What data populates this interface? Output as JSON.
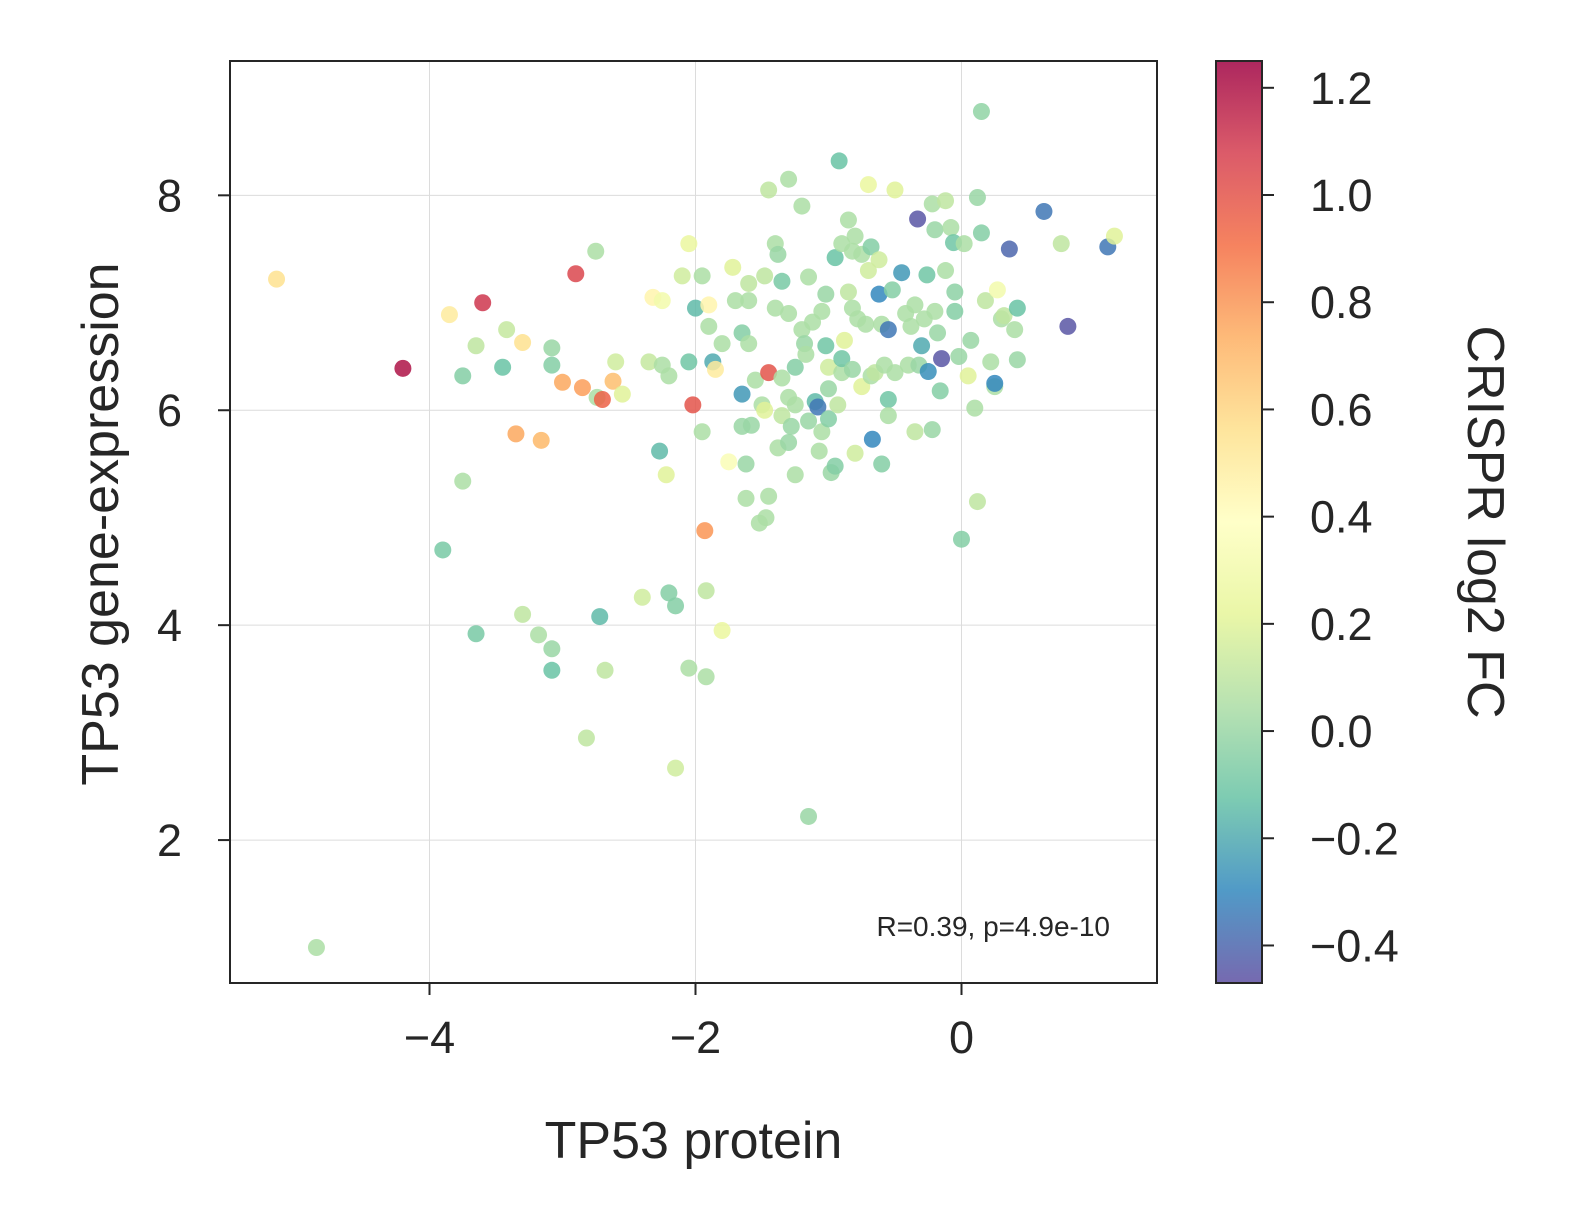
{
  "chart_data": {
    "type": "scatter",
    "xlabel": "TP53 protein",
    "ylabel": "TP53 gene-expression",
    "xlim": [
      -5.5,
      1.47
    ],
    "ylim": [
      0.67,
      9.25
    ],
    "xticks": [
      -4,
      -2,
      0
    ],
    "xtick_labels": [
      "−4",
      "−2",
      "0"
    ],
    "yticks": [
      2,
      4,
      6,
      8
    ],
    "ytick_labels": [
      "2",
      "4",
      "6",
      "8"
    ],
    "grid": true,
    "colormap": "Spectral_r",
    "colorbar": {
      "label": "CRISPR log2 FC",
      "min": -0.47,
      "max": 1.25,
      "ticks": [
        -0.4,
        -0.2,
        0.0,
        0.2,
        0.4,
        0.6,
        0.8,
        1.0,
        1.2
      ],
      "tick_labels": [
        "−0.4",
        "−0.2",
        "0.0",
        "0.2",
        "0.4",
        "0.6",
        "0.8",
        "1.0",
        "1.2"
      ],
      "stops": [
        "#5e4fa2",
        "#3288bd",
        "#66c2a5",
        "#abdda4",
        "#e6f598",
        "#ffffbf",
        "#fee08b",
        "#fdae61",
        "#f46d43",
        "#d53e4f",
        "#9e0142"
      ]
    },
    "annotation": "R=0.39, p=4.9e-10",
    "points": [
      {
        "x": -5.15,
        "y": 7.22,
        "c": 0.55
      },
      {
        "x": -4.85,
        "y": 1.0,
        "c": 0.05
      },
      {
        "x": -4.2,
        "y": 6.39,
        "c": 1.2
      },
      {
        "x": -3.9,
        "y": 4.7,
        "c": -0.08
      },
      {
        "x": -3.85,
        "y": 6.89,
        "c": 0.5
      },
      {
        "x": -3.75,
        "y": 6.32,
        "c": -0.05
      },
      {
        "x": -3.75,
        "y": 5.34,
        "c": 0.05
      },
      {
        "x": -3.65,
        "y": 6.6,
        "c": 0.1
      },
      {
        "x": -3.65,
        "y": 3.92,
        "c": -0.08
      },
      {
        "x": -3.6,
        "y": 7.0,
        "c": 1.1
      },
      {
        "x": -3.45,
        "y": 6.4,
        "c": -0.12
      },
      {
        "x": -3.42,
        "y": 6.75,
        "c": 0.12
      },
      {
        "x": -3.35,
        "y": 5.78,
        "c": 0.75
      },
      {
        "x": -3.3,
        "y": 6.63,
        "c": 0.55
      },
      {
        "x": -3.3,
        "y": 4.1,
        "c": 0.1
      },
      {
        "x": -3.18,
        "y": 3.91,
        "c": 0.05
      },
      {
        "x": -3.16,
        "y": 5.72,
        "c": 0.7
      },
      {
        "x": -3.08,
        "y": 6.58,
        "c": 0.0
      },
      {
        "x": -3.08,
        "y": 6.42,
        "c": -0.05
      },
      {
        "x": -3.08,
        "y": 3.78,
        "c": 0.0
      },
      {
        "x": -3.08,
        "y": 3.58,
        "c": -0.12
      },
      {
        "x": -3.0,
        "y": 6.26,
        "c": 0.75
      },
      {
        "x": -2.9,
        "y": 7.27,
        "c": 1.05
      },
      {
        "x": -2.85,
        "y": 6.21,
        "c": 0.78
      },
      {
        "x": -2.82,
        "y": 2.95,
        "c": 0.1
      },
      {
        "x": -2.75,
        "y": 7.48,
        "c": 0.05
      },
      {
        "x": -2.74,
        "y": 6.12,
        "c": 0.05
      },
      {
        "x": -2.72,
        "y": 4.08,
        "c": -0.15
      },
      {
        "x": -2.7,
        "y": 6.1,
        "c": 0.95
      },
      {
        "x": -2.68,
        "y": 3.58,
        "c": 0.1
      },
      {
        "x": -2.62,
        "y": 6.27,
        "c": 0.68
      },
      {
        "x": -2.6,
        "y": 6.45,
        "c": 0.15
      },
      {
        "x": -2.55,
        "y": 6.15,
        "c": 0.2
      },
      {
        "x": -2.4,
        "y": 4.26,
        "c": 0.15
      },
      {
        "x": -2.35,
        "y": 6.45,
        "c": 0.12
      },
      {
        "x": -2.32,
        "y": 7.05,
        "c": 0.45
      },
      {
        "x": -2.27,
        "y": 5.62,
        "c": -0.15
      },
      {
        "x": -2.25,
        "y": 6.42,
        "c": 0.05
      },
      {
        "x": -2.25,
        "y": 7.02,
        "c": 0.3
      },
      {
        "x": -2.22,
        "y": 5.4,
        "c": 0.2
      },
      {
        "x": -2.2,
        "y": 6.32,
        "c": 0.05
      },
      {
        "x": -2.2,
        "y": 4.3,
        "c": -0.05
      },
      {
        "x": -2.15,
        "y": 4.18,
        "c": -0.05
      },
      {
        "x": -2.15,
        "y": 2.67,
        "c": 0.15
      },
      {
        "x": -2.1,
        "y": 7.25,
        "c": 0.15
      },
      {
        "x": -2.05,
        "y": 3.6,
        "c": 0.05
      },
      {
        "x": -2.05,
        "y": 7.55,
        "c": 0.25
      },
      {
        "x": -2.05,
        "y": 6.45,
        "c": -0.1
      },
      {
        "x": -2.0,
        "y": 6.95,
        "c": -0.15
      },
      {
        "x": -2.02,
        "y": 6.05,
        "c": 1.0
      },
      {
        "x": -1.95,
        "y": 7.25,
        "c": 0.05
      },
      {
        "x": -1.95,
        "y": 5.8,
        "c": 0.05
      },
      {
        "x": -1.93,
        "y": 4.88,
        "c": 0.8
      },
      {
        "x": -1.92,
        "y": 4.32,
        "c": 0.1
      },
      {
        "x": -1.92,
        "y": 3.52,
        "c": 0.05
      },
      {
        "x": -1.9,
        "y": 6.98,
        "c": 0.45
      },
      {
        "x": -1.9,
        "y": 6.78,
        "c": 0.05
      },
      {
        "x": -1.87,
        "y": 6.45,
        "c": -0.2
      },
      {
        "x": -1.85,
        "y": 6.38,
        "c": 0.5
      },
      {
        "x": -1.8,
        "y": 3.95,
        "c": 0.25
      },
      {
        "x": -1.8,
        "y": 6.62,
        "c": 0.05
      },
      {
        "x": -1.75,
        "y": 5.52,
        "c": 0.35
      },
      {
        "x": -1.72,
        "y": 7.33,
        "c": 0.2
      },
      {
        "x": -1.7,
        "y": 7.02,
        "c": 0.05
      },
      {
        "x": -1.65,
        "y": 5.85,
        "c": 0.0
      },
      {
        "x": -1.65,
        "y": 6.15,
        "c": -0.25
      },
      {
        "x": -1.65,
        "y": 6.72,
        "c": -0.05
      },
      {
        "x": -1.62,
        "y": 5.5,
        "c": 0.0
      },
      {
        "x": -1.62,
        "y": 5.18,
        "c": 0.05
      },
      {
        "x": -1.6,
        "y": 7.18,
        "c": 0.1
      },
      {
        "x": -1.6,
        "y": 7.02,
        "c": 0.05
      },
      {
        "x": -1.6,
        "y": 6.62,
        "c": 0.05
      },
      {
        "x": -1.58,
        "y": 5.86,
        "c": 0.0
      },
      {
        "x": -1.55,
        "y": 6.28,
        "c": 0.05
      },
      {
        "x": -1.52,
        "y": 4.95,
        "c": 0.05
      },
      {
        "x": -1.5,
        "y": 6.05,
        "c": 0.05
      },
      {
        "x": -1.48,
        "y": 7.25,
        "c": 0.1
      },
      {
        "x": -1.48,
        "y": 6.0,
        "c": 0.2
      },
      {
        "x": -1.47,
        "y": 5.0,
        "c": 0.05
      },
      {
        "x": -1.45,
        "y": 6.35,
        "c": 1.0
      },
      {
        "x": -1.45,
        "y": 5.2,
        "c": 0.05
      },
      {
        "x": -1.45,
        "y": 8.05,
        "c": 0.1
      },
      {
        "x": -1.4,
        "y": 6.95,
        "c": 0.05
      },
      {
        "x": -1.4,
        "y": 7.55,
        "c": 0.05
      },
      {
        "x": -1.38,
        "y": 7.45,
        "c": 0.0
      },
      {
        "x": -1.38,
        "y": 5.65,
        "c": 0.05
      },
      {
        "x": -1.35,
        "y": 7.2,
        "c": -0.08
      },
      {
        "x": -1.35,
        "y": 5.95,
        "c": 0.1
      },
      {
        "x": -1.35,
        "y": 6.3,
        "c": 0.05
      },
      {
        "x": -1.3,
        "y": 8.15,
        "c": 0.05
      },
      {
        "x": -1.3,
        "y": 6.9,
        "c": 0.05
      },
      {
        "x": -1.3,
        "y": 5.7,
        "c": 0.0
      },
      {
        "x": -1.3,
        "y": 6.12,
        "c": 0.05
      },
      {
        "x": -1.28,
        "y": 5.85,
        "c": 0.0
      },
      {
        "x": -1.25,
        "y": 6.4,
        "c": -0.05
      },
      {
        "x": -1.25,
        "y": 6.05,
        "c": 0.05
      },
      {
        "x": -1.25,
        "y": 5.4,
        "c": 0.05
      },
      {
        "x": -1.2,
        "y": 7.9,
        "c": 0.05
      },
      {
        "x": -1.2,
        "y": 6.75,
        "c": 0.05
      },
      {
        "x": -1.18,
        "y": 6.62,
        "c": 0.0
      },
      {
        "x": -1.17,
        "y": 6.52,
        "c": 0.05
      },
      {
        "x": -1.15,
        "y": 7.24,
        "c": 0.05
      },
      {
        "x": -1.15,
        "y": 5.9,
        "c": 0.0
      },
      {
        "x": -1.15,
        "y": 2.22,
        "c": 0.0
      },
      {
        "x": -1.12,
        "y": 6.82,
        "c": 0.05
      },
      {
        "x": -1.1,
        "y": 6.08,
        "c": -0.15
      },
      {
        "x": -1.08,
        "y": 6.03,
        "c": -0.35
      },
      {
        "x": -1.07,
        "y": 5.62,
        "c": 0.05
      },
      {
        "x": -1.05,
        "y": 6.92,
        "c": 0.05
      },
      {
        "x": -1.05,
        "y": 5.8,
        "c": 0.05
      },
      {
        "x": -1.02,
        "y": 6.6,
        "c": -0.1
      },
      {
        "x": -1.02,
        "y": 7.08,
        "c": 0.0
      },
      {
        "x": -1.0,
        "y": 6.4,
        "c": 0.15
      },
      {
        "x": -1.0,
        "y": 6.2,
        "c": 0.0
      },
      {
        "x": -1.0,
        "y": 5.92,
        "c": -0.05
      },
      {
        "x": -0.98,
        "y": 5.42,
        "c": 0.0
      },
      {
        "x": -0.95,
        "y": 7.42,
        "c": -0.12
      },
      {
        "x": -0.95,
        "y": 5.48,
        "c": -0.05
      },
      {
        "x": -0.93,
        "y": 6.05,
        "c": 0.1
      },
      {
        "x": -0.92,
        "y": 8.32,
        "c": -0.12
      },
      {
        "x": -0.9,
        "y": 7.55,
        "c": 0.05
      },
      {
        "x": -0.9,
        "y": 6.35,
        "c": 0.05
      },
      {
        "x": -0.9,
        "y": 6.48,
        "c": -0.1
      },
      {
        "x": -0.88,
        "y": 6.65,
        "c": 0.2
      },
      {
        "x": -0.85,
        "y": 7.1,
        "c": 0.1
      },
      {
        "x": -0.85,
        "y": 7.77,
        "c": 0.05
      },
      {
        "x": -0.82,
        "y": 7.48,
        "c": 0.05
      },
      {
        "x": -0.82,
        "y": 6.95,
        "c": 0.05
      },
      {
        "x": -0.82,
        "y": 6.38,
        "c": 0.0
      },
      {
        "x": -0.8,
        "y": 7.62,
        "c": 0.05
      },
      {
        "x": -0.8,
        "y": 5.6,
        "c": 0.15
      },
      {
        "x": -0.78,
        "y": 6.85,
        "c": 0.05
      },
      {
        "x": -0.75,
        "y": 7.45,
        "c": 0.05
      },
      {
        "x": -0.75,
        "y": 6.22,
        "c": 0.2
      },
      {
        "x": -0.72,
        "y": 6.8,
        "c": 0.05
      },
      {
        "x": -0.7,
        "y": 8.1,
        "c": 0.25
      },
      {
        "x": -0.7,
        "y": 7.3,
        "c": 0.15
      },
      {
        "x": -0.68,
        "y": 7.52,
        "c": -0.05
      },
      {
        "x": -0.68,
        "y": 6.32,
        "c": 0.05
      },
      {
        "x": -0.67,
        "y": 5.73,
        "c": -0.3
      },
      {
        "x": -0.65,
        "y": 6.35,
        "c": 0.1
      },
      {
        "x": -0.62,
        "y": 7.4,
        "c": 0.15
      },
      {
        "x": -0.62,
        "y": 7.08,
        "c": -0.3
      },
      {
        "x": -0.6,
        "y": 6.8,
        "c": 0.05
      },
      {
        "x": -0.6,
        "y": 5.5,
        "c": -0.05
      },
      {
        "x": -0.58,
        "y": 6.42,
        "c": 0.05
      },
      {
        "x": -0.55,
        "y": 6.75,
        "c": -0.35
      },
      {
        "x": -0.55,
        "y": 6.1,
        "c": -0.1
      },
      {
        "x": -0.55,
        "y": 5.95,
        "c": 0.05
      },
      {
        "x": -0.52,
        "y": 7.12,
        "c": -0.05
      },
      {
        "x": -0.5,
        "y": 8.05,
        "c": 0.2
      },
      {
        "x": -0.5,
        "y": 6.35,
        "c": 0.05
      },
      {
        "x": -0.45,
        "y": 7.28,
        "c": -0.25
      },
      {
        "x": -0.42,
        "y": 6.9,
        "c": 0.05
      },
      {
        "x": -0.4,
        "y": 6.42,
        "c": 0.05
      },
      {
        "x": -0.38,
        "y": 6.78,
        "c": 0.05
      },
      {
        "x": -0.35,
        "y": 6.98,
        "c": 0.05
      },
      {
        "x": -0.35,
        "y": 5.8,
        "c": 0.1
      },
      {
        "x": -0.33,
        "y": 7.78,
        "c": -0.45
      },
      {
        "x": -0.32,
        "y": 6.42,
        "c": 0.0
      },
      {
        "x": -0.3,
        "y": 6.6,
        "c": -0.2
      },
      {
        "x": -0.28,
        "y": 6.85,
        "c": 0.05
      },
      {
        "x": -0.26,
        "y": 7.26,
        "c": -0.1
      },
      {
        "x": -0.25,
        "y": 6.36,
        "c": -0.28
      },
      {
        "x": -0.22,
        "y": 5.82,
        "c": 0.0
      },
      {
        "x": -0.22,
        "y": 7.92,
        "c": 0.05
      },
      {
        "x": -0.2,
        "y": 6.92,
        "c": 0.05
      },
      {
        "x": -0.2,
        "y": 7.68,
        "c": 0.0
      },
      {
        "x": -0.18,
        "y": 6.72,
        "c": 0.0
      },
      {
        "x": -0.16,
        "y": 6.18,
        "c": -0.05
      },
      {
        "x": -0.15,
        "y": 6.48,
        "c": -0.45
      },
      {
        "x": -0.12,
        "y": 7.3,
        "c": 0.05
      },
      {
        "x": -0.12,
        "y": 7.95,
        "c": 0.1
      },
      {
        "x": -0.08,
        "y": 7.7,
        "c": 0.05
      },
      {
        "x": -0.06,
        "y": 7.56,
        "c": -0.1
      },
      {
        "x": -0.05,
        "y": 6.92,
        "c": -0.05
      },
      {
        "x": -0.05,
        "y": 7.1,
        "c": -0.03
      },
      {
        "x": -0.02,
        "y": 6.5,
        "c": 0.0
      },
      {
        "x": 0.0,
        "y": 4.8,
        "c": -0.05
      },
      {
        "x": 0.02,
        "y": 7.55,
        "c": 0.05
      },
      {
        "x": 0.05,
        "y": 6.32,
        "c": 0.2
      },
      {
        "x": 0.07,
        "y": 6.65,
        "c": 0.0
      },
      {
        "x": 0.1,
        "y": 6.02,
        "c": 0.05
      },
      {
        "x": 0.12,
        "y": 5.15,
        "c": 0.1
      },
      {
        "x": 0.12,
        "y": 7.98,
        "c": 0.0
      },
      {
        "x": 0.15,
        "y": 8.78,
        "c": -0.02
      },
      {
        "x": 0.15,
        "y": 7.65,
        "c": -0.05
      },
      {
        "x": 0.18,
        "y": 7.02,
        "c": 0.1
      },
      {
        "x": 0.22,
        "y": 6.45,
        "c": 0.05
      },
      {
        "x": 0.25,
        "y": 6.22,
        "c": 0.05
      },
      {
        "x": 0.25,
        "y": 6.25,
        "c": -0.3
      },
      {
        "x": 0.27,
        "y": 7.12,
        "c": 0.3
      },
      {
        "x": 0.3,
        "y": 6.85,
        "c": 0.05
      },
      {
        "x": 0.32,
        "y": 6.88,
        "c": 0.1
      },
      {
        "x": 0.36,
        "y": 7.5,
        "c": -0.4
      },
      {
        "x": 0.4,
        "y": 6.75,
        "c": 0.05
      },
      {
        "x": 0.42,
        "y": 6.95,
        "c": -0.12
      },
      {
        "x": 0.42,
        "y": 6.47,
        "c": 0.0
      },
      {
        "x": 0.62,
        "y": 7.85,
        "c": -0.35
      },
      {
        "x": 0.75,
        "y": 7.55,
        "c": 0.1
      },
      {
        "x": 0.8,
        "y": 6.78,
        "c": -0.45
      },
      {
        "x": 1.1,
        "y": 7.52,
        "c": -0.35
      },
      {
        "x": 1.15,
        "y": 7.62,
        "c": 0.2
      }
    ]
  }
}
